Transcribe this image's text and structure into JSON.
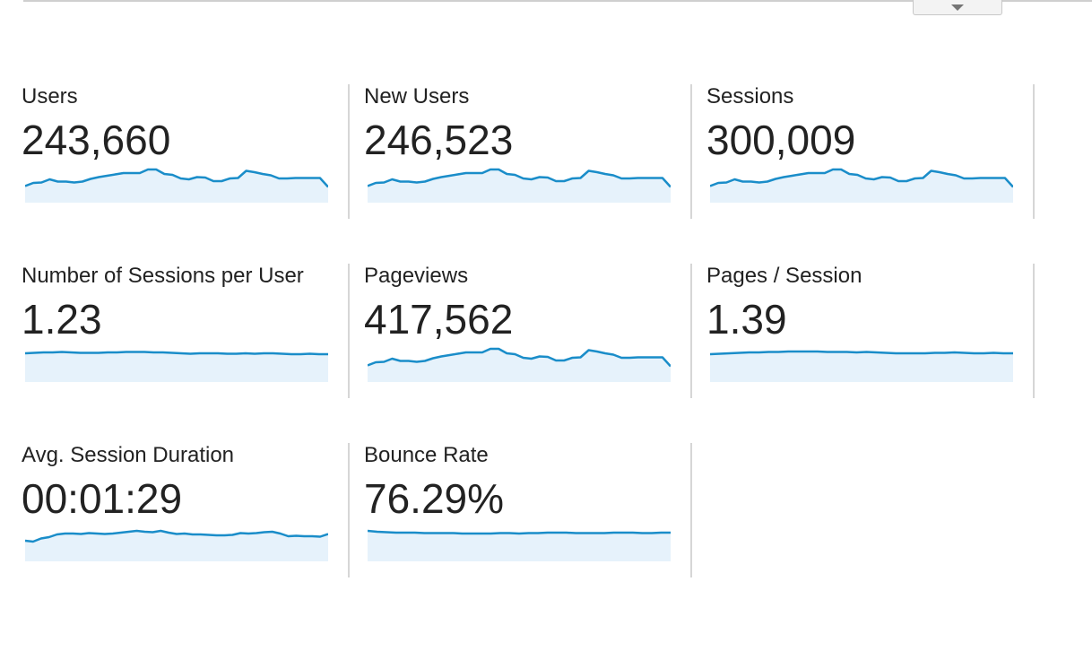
{
  "colors": {
    "line": "#1a8dc9",
    "fill": "#e6f2fb"
  },
  "toolbar": {
    "dropdown_icon": "caret-down"
  },
  "metrics": [
    {
      "id": "users",
      "label": "Users",
      "value": "243,660",
      "trend": [
        0.29,
        0.22,
        0.21,
        0.14,
        0.19,
        0.19,
        0.21,
        0.19,
        0.13,
        0.09,
        0.06,
        0.03,
        0.0,
        0.0,
        0.0,
        -0.08,
        -0.08,
        0.02,
        0.04,
        0.12,
        0.14,
        0.09,
        0.1,
        0.18,
        0.18,
        0.12,
        0.11,
        -0.05,
        -0.02,
        0.02,
        0.05,
        0.12,
        0.12,
        0.11,
        0.11,
        0.11,
        0.11,
        0.31
      ]
    },
    {
      "id": "new-users",
      "label": "New Users",
      "value": "246,523",
      "trend": [
        0.29,
        0.22,
        0.21,
        0.14,
        0.19,
        0.19,
        0.21,
        0.19,
        0.13,
        0.09,
        0.06,
        0.03,
        0.0,
        0.0,
        0.0,
        -0.08,
        -0.08,
        0.02,
        0.04,
        0.12,
        0.14,
        0.09,
        0.1,
        0.18,
        0.18,
        0.12,
        0.11,
        -0.05,
        -0.02,
        0.02,
        0.05,
        0.12,
        0.12,
        0.11,
        0.11,
        0.11,
        0.11,
        0.31
      ]
    },
    {
      "id": "sessions",
      "label": "Sessions",
      "value": "300,009",
      "trend": [
        0.29,
        0.22,
        0.21,
        0.14,
        0.19,
        0.19,
        0.21,
        0.19,
        0.13,
        0.09,
        0.06,
        0.03,
        0.0,
        0.0,
        0.0,
        -0.08,
        -0.08,
        0.02,
        0.04,
        0.12,
        0.14,
        0.09,
        0.1,
        0.18,
        0.18,
        0.12,
        0.11,
        -0.05,
        -0.02,
        0.02,
        0.05,
        0.12,
        0.12,
        0.11,
        0.11,
        0.11,
        0.11,
        0.31
      ]
    },
    {
      "id": "sessions-per-user",
      "label": "Number of Sessions per User",
      "value": "1.23",
      "trend": [
        0.02,
        0.01,
        0.0,
        0.0,
        -0.01,
        0.0,
        0.01,
        0.01,
        0.01,
        0.0,
        0.0,
        -0.01,
        -0.01,
        -0.01,
        0.0,
        0.0,
        0.01,
        0.02,
        0.03,
        0.02,
        0.02,
        0.02,
        0.03,
        0.03,
        0.02,
        0.03,
        0.02,
        0.02,
        0.03,
        0.04,
        0.04,
        0.03,
        0.04,
        0.04
      ]
    },
    {
      "id": "pageviews",
      "label": "Pageviews",
      "value": "417,562",
      "trend": [
        0.29,
        0.22,
        0.21,
        0.14,
        0.19,
        0.19,
        0.21,
        0.19,
        0.13,
        0.09,
        0.06,
        0.03,
        0.0,
        0.0,
        0.0,
        -0.08,
        -0.08,
        0.02,
        0.04,
        0.12,
        0.14,
        0.09,
        0.1,
        0.18,
        0.18,
        0.12,
        0.11,
        -0.05,
        -0.02,
        0.02,
        0.05,
        0.12,
        0.12,
        0.11,
        0.11,
        0.11,
        0.11,
        0.31
      ]
    },
    {
      "id": "pages-per-session",
      "label": "Pages / Session",
      "value": "1.39",
      "trend": [
        0.04,
        0.03,
        0.02,
        0.01,
        0.0,
        0.0,
        -0.01,
        -0.01,
        -0.02,
        -0.02,
        -0.02,
        -0.02,
        -0.01,
        -0.01,
        -0.01,
        0.0,
        -0.01,
        0.0,
        0.01,
        0.02,
        0.02,
        0.02,
        0.02,
        0.01,
        0.01,
        0.0,
        0.01,
        0.02,
        0.02,
        0.01,
        0.02,
        0.02
      ]
    },
    {
      "id": "avg-session-duration",
      "label": "Avg. Session Duration",
      "value": "00:01:29",
      "trend": [
        0.2,
        0.22,
        0.15,
        0.12,
        0.06,
        0.04,
        0.04,
        0.05,
        0.03,
        0.04,
        0.05,
        0.04,
        0.02,
        0.0,
        -0.02,
        0.0,
        0.01,
        -0.02,
        0.02,
        0.05,
        0.04,
        0.06,
        0.06,
        0.07,
        0.08,
        0.08,
        0.07,
        0.03,
        0.04,
        0.03,
        0.01,
        0.0,
        0.04,
        0.1,
        0.09,
        0.1,
        0.1,
        0.11,
        0.05
      ]
    },
    {
      "id": "bounce-rate",
      "label": "Bounce Rate",
      "value": "76.29%",
      "trend": [
        -0.02,
        0.0,
        0.01,
        0.02,
        0.02,
        0.02,
        0.03,
        0.03,
        0.03,
        0.03,
        0.04,
        0.04,
        0.04,
        0.04,
        0.03,
        0.03,
        0.04,
        0.03,
        0.03,
        0.02,
        0.02,
        0.02,
        0.03,
        0.03,
        0.03,
        0.03,
        0.02,
        0.02,
        0.02,
        0.03,
        0.03,
        0.02,
        0.02
      ]
    }
  ]
}
